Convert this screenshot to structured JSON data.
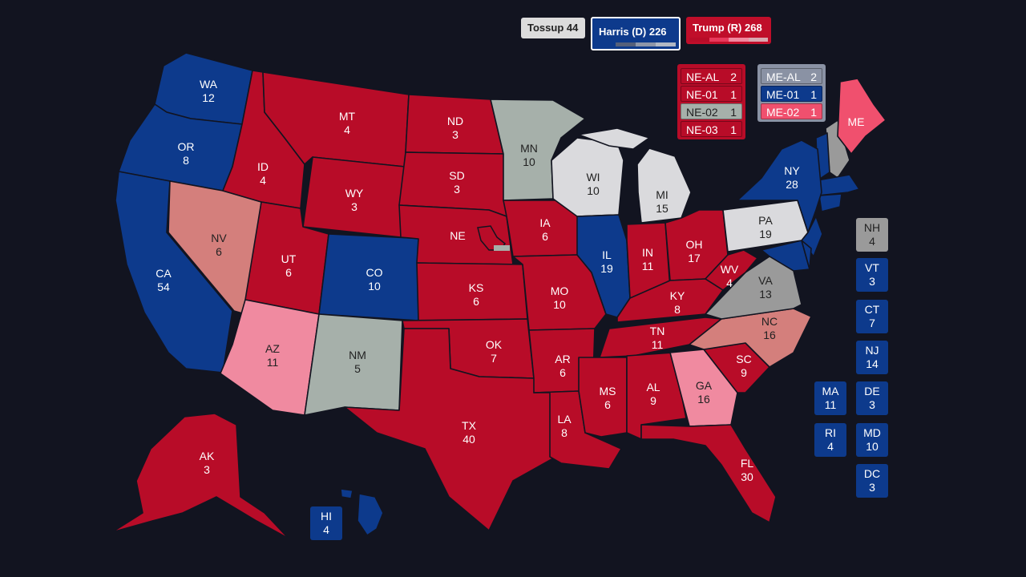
{
  "header": {
    "tossup": "Tossup 44",
    "harris": "Harris (D) 226",
    "trump": "Trump (R) 268"
  },
  "colors": {
    "background": "#121420",
    "safe_d": "#0d3a8c",
    "safe_r": "#b80c28",
    "lean_r": "#f08aa0",
    "tilt_r": "#d47f7c",
    "tossup": "#dadadd",
    "tossup_green": "#a6b0aa",
    "tossup_gray": "#9a9a9a",
    "maine_r": "#f0506e"
  },
  "states": [
    {
      "id": "WA",
      "abbr": "WA",
      "ev": "12",
      "color": "#0d3a8c",
      "text": "#fff"
    },
    {
      "id": "OR",
      "abbr": "OR",
      "ev": "8",
      "color": "#0d3a8c",
      "text": "#fff"
    },
    {
      "id": "CA",
      "abbr": "CA",
      "ev": "54",
      "color": "#0d3a8c",
      "text": "#fff"
    },
    {
      "id": "NV",
      "abbr": "NV",
      "ev": "6",
      "color": "#d47f7c",
      "text": "#222"
    },
    {
      "id": "ID",
      "abbr": "ID",
      "ev": "4",
      "color": "#b80c28",
      "text": "#fff"
    },
    {
      "id": "MT",
      "abbr": "MT",
      "ev": "4",
      "color": "#b80c28",
      "text": "#fff"
    },
    {
      "id": "WY",
      "abbr": "WY",
      "ev": "3",
      "color": "#b80c28",
      "text": "#fff"
    },
    {
      "id": "UT",
      "abbr": "UT",
      "ev": "6",
      "color": "#b80c28",
      "text": "#fff"
    },
    {
      "id": "AZ",
      "abbr": "AZ",
      "ev": "11",
      "color": "#f08aa0",
      "text": "#222"
    },
    {
      "id": "CO",
      "abbr": "CO",
      "ev": "10",
      "color": "#0d3a8c",
      "text": "#fff"
    },
    {
      "id": "NM",
      "abbr": "NM",
      "ev": "5",
      "color": "#a6b0aa",
      "text": "#222"
    },
    {
      "id": "ND",
      "abbr": "ND",
      "ev": "3",
      "color": "#b80c28",
      "text": "#fff"
    },
    {
      "id": "SD",
      "abbr": "SD",
      "ev": "3",
      "color": "#b80c28",
      "text": "#fff"
    },
    {
      "id": "NE",
      "abbr": "NE",
      "ev": "",
      "color": "#b80c28",
      "text": "#fff"
    },
    {
      "id": "KS",
      "abbr": "KS",
      "ev": "6",
      "color": "#b80c28",
      "text": "#fff"
    },
    {
      "id": "OK",
      "abbr": "OK",
      "ev": "7",
      "color": "#b80c28",
      "text": "#fff"
    },
    {
      "id": "TX",
      "abbr": "TX",
      "ev": "40",
      "color": "#b80c28",
      "text": "#fff"
    },
    {
      "id": "MN",
      "abbr": "MN",
      "ev": "10",
      "color": "#a6b0aa",
      "text": "#222"
    },
    {
      "id": "IA",
      "abbr": "IA",
      "ev": "6",
      "color": "#b80c28",
      "text": "#fff"
    },
    {
      "id": "MO",
      "abbr": "MO",
      "ev": "10",
      "color": "#b80c28",
      "text": "#fff"
    },
    {
      "id": "AR",
      "abbr": "AR",
      "ev": "6",
      "color": "#b80c28",
      "text": "#fff"
    },
    {
      "id": "LA",
      "abbr": "LA",
      "ev": "8",
      "color": "#b80c28",
      "text": "#fff"
    },
    {
      "id": "WI",
      "abbr": "WI",
      "ev": "10",
      "color": "#dadadd",
      "text": "#222"
    },
    {
      "id": "IL",
      "abbr": "IL",
      "ev": "19",
      "color": "#0d3a8c",
      "text": "#fff"
    },
    {
      "id": "MI",
      "abbr": "MI",
      "ev": "15",
      "color": "#dadadd",
      "text": "#222"
    },
    {
      "id": "IN",
      "abbr": "IN",
      "ev": "11",
      "color": "#b80c28",
      "text": "#fff"
    },
    {
      "id": "OH",
      "abbr": "OH",
      "ev": "17",
      "color": "#b80c28",
      "text": "#fff"
    },
    {
      "id": "KY",
      "abbr": "KY",
      "ev": "8",
      "color": "#b80c28",
      "text": "#fff"
    },
    {
      "id": "TN",
      "abbr": "TN",
      "ev": "11",
      "color": "#b80c28",
      "text": "#fff"
    },
    {
      "id": "MS",
      "abbr": "MS",
      "ev": "6",
      "color": "#b80c28",
      "text": "#fff"
    },
    {
      "id": "AL",
      "abbr": "AL",
      "ev": "9",
      "color": "#b80c28",
      "text": "#fff"
    },
    {
      "id": "GA",
      "abbr": "GA",
      "ev": "16",
      "color": "#f08aa0",
      "text": "#222"
    },
    {
      "id": "FL",
      "abbr": "FL",
      "ev": "30",
      "color": "#b80c28",
      "text": "#fff"
    },
    {
      "id": "SC",
      "abbr": "SC",
      "ev": "9",
      "color": "#b80c28",
      "text": "#fff"
    },
    {
      "id": "NC",
      "abbr": "NC",
      "ev": "16",
      "color": "#d47f7c",
      "text": "#222"
    },
    {
      "id": "VA",
      "abbr": "VA",
      "ev": "13",
      "color": "#9a9a9a",
      "text": "#222"
    },
    {
      "id": "WV",
      "abbr": "WV",
      "ev": "4",
      "color": "#b80c28",
      "text": "#fff"
    },
    {
      "id": "PA",
      "abbr": "PA",
      "ev": "19",
      "color": "#dadadd",
      "text": "#222"
    },
    {
      "id": "NY",
      "abbr": "NY",
      "ev": "28",
      "color": "#0d3a8c",
      "text": "#fff"
    },
    {
      "id": "ME",
      "abbr": "ME",
      "ev": "",
      "color": "#f0506e",
      "text": "#fff"
    },
    {
      "id": "AK",
      "abbr": "AK",
      "ev": "3",
      "color": "#b80c28",
      "text": "#fff"
    }
  ],
  "ne_districts": [
    {
      "label": "NE-AL",
      "ev": "2",
      "bg": "#b80c28",
      "fg": "#fff"
    },
    {
      "label": "NE-01",
      "ev": "1",
      "bg": "#b80c28",
      "fg": "#fff"
    },
    {
      "label": "NE-02",
      "ev": "1",
      "bg": "#a6b0aa",
      "fg": "#222"
    },
    {
      "label": "NE-03",
      "ev": "1",
      "bg": "#b80c28",
      "fg": "#fff"
    }
  ],
  "me_districts": [
    {
      "label": "ME-AL",
      "ev": "2",
      "bg": "#8a92a4",
      "fg": "#fff"
    },
    {
      "label": "ME-01",
      "ev": "1",
      "bg": "#0d3a8c",
      "fg": "#fff"
    },
    {
      "label": "ME-02",
      "ev": "1",
      "bg": "#f0506e",
      "fg": "#fff"
    }
  ],
  "small_states": [
    {
      "abbr": "NH",
      "ev": "4",
      "color": "#9a9a9a",
      "text": "#222"
    },
    {
      "abbr": "VT",
      "ev": "3",
      "color": "#0d3a8c",
      "text": "#fff"
    },
    {
      "abbr": "CT",
      "ev": "7",
      "color": "#0d3a8c",
      "text": "#fff"
    },
    {
      "abbr": "NJ",
      "ev": "14",
      "color": "#0d3a8c",
      "text": "#fff"
    },
    {
      "abbr": "MA",
      "ev": "11",
      "color": "#0d3a8c",
      "text": "#fff"
    },
    {
      "abbr": "DE",
      "ev": "3",
      "color": "#0d3a8c",
      "text": "#fff"
    },
    {
      "abbr": "RI",
      "ev": "4",
      "color": "#0d3a8c",
      "text": "#fff"
    },
    {
      "abbr": "MD",
      "ev": "10",
      "color": "#0d3a8c",
      "text": "#fff"
    },
    {
      "abbr": "DC",
      "ev": "3",
      "color": "#0d3a8c",
      "text": "#fff"
    },
    {
      "abbr": "HI",
      "ev": "4",
      "color": "#0d3a8c",
      "text": "#fff"
    }
  ]
}
